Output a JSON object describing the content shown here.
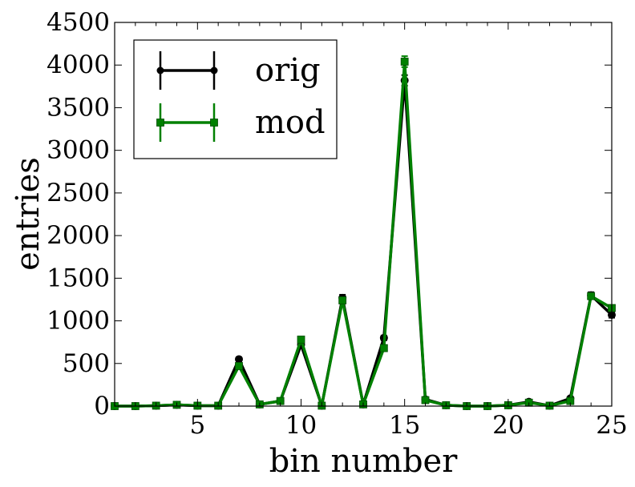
{
  "chart_data": {
    "type": "line",
    "xlabel": "bin number",
    "ylabel": "entries",
    "xlim": [
      1,
      25
    ],
    "ylim": [
      0,
      4500
    ],
    "x_ticks": [
      5,
      10,
      15,
      20,
      25
    ],
    "y_ticks": [
      0,
      500,
      1000,
      1500,
      2000,
      2500,
      3000,
      3500,
      4000,
      4500
    ],
    "legend_position": "top-left",
    "x": [
      1,
      2,
      3,
      4,
      5,
      6,
      7,
      8,
      9,
      10,
      11,
      12,
      13,
      14,
      15,
      16,
      17,
      18,
      19,
      20,
      21,
      22,
      23,
      24,
      25
    ],
    "series": [
      {
        "name": "orig",
        "color": "#000000",
        "marker": "circle",
        "values": [
          0,
          0,
          5,
          15,
          5,
          5,
          550,
          20,
          60,
          720,
          5,
          1270,
          20,
          800,
          3820,
          80,
          10,
          0,
          0,
          10,
          50,
          5,
          90,
          1300,
          1070
        ],
        "errors": [
          0,
          0,
          2,
          4,
          2,
          2,
          23,
          4,
          8,
          27,
          2,
          36,
          4,
          28,
          62,
          9,
          3,
          0,
          0,
          3,
          7,
          2,
          9,
          36,
          33
        ]
      },
      {
        "name": "mod",
        "color": "#008000",
        "marker": "square",
        "values": [
          0,
          0,
          5,
          15,
          5,
          5,
          470,
          20,
          60,
          780,
          5,
          1240,
          20,
          680,
          4040,
          70,
          10,
          0,
          0,
          10,
          40,
          5,
          60,
          1290,
          1150
        ],
        "errors": [
          0,
          0,
          2,
          4,
          2,
          2,
          22,
          4,
          8,
          28,
          2,
          35,
          4,
          26,
          64,
          8,
          3,
          0,
          0,
          3,
          6,
          2,
          8,
          36,
          34
        ]
      }
    ]
  }
}
